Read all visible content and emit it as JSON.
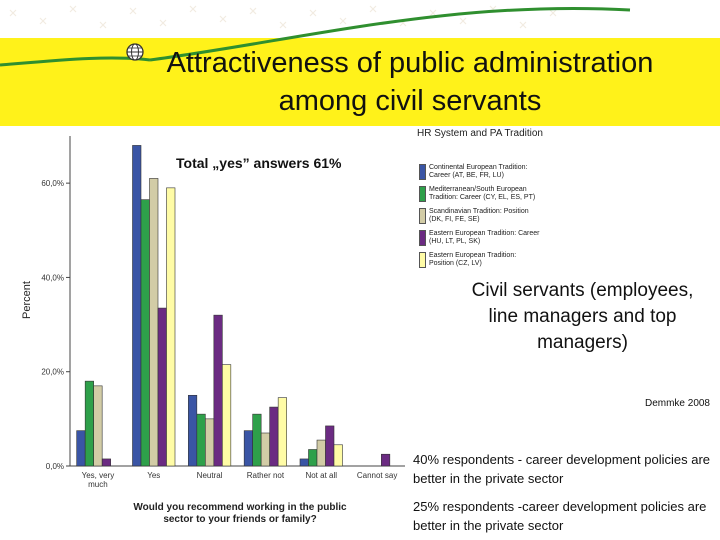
{
  "title": {
    "line1": "Attractiveness of public administration",
    "line2": "among civil servants"
  },
  "annotations": {
    "total_yes": "Total „yes” answers 61%",
    "civil_servants": "Civil servants (employees, line managers and top managers)",
    "source": "Demmke 2008",
    "note1": "40% respondents - career development policies are better in the private sector",
    "note2": "25% respondents -career development policies are better in the private sector"
  },
  "chart_data": {
    "type": "bar",
    "ylabel": "Percent",
    "xlabel": "Would you recommend working in the public sector to your friends or family?",
    "ylim": [
      0,
      70
    ],
    "yticks": [
      "0,0%",
      "20,0%",
      "40,0%",
      "60,0%"
    ],
    "categories": [
      "Yes, very much",
      "Yes",
      "Neutral",
      "Rather not",
      "Not at all",
      "Cannot say"
    ],
    "legend_title": "HR System and PA Tradition",
    "legend_placement": "right",
    "grid": false,
    "series": [
      {
        "name": "Continental European Tradition: Career (AT, BE, FR, LU)",
        "color": "#3a55a5",
        "values": [
          7.5,
          68,
          15,
          7.5,
          1.5,
          0
        ]
      },
      {
        "name": "Mediterranean/South European Tradition: Career (CY, EL, ES, PT)",
        "color": "#2ea04a",
        "values": [
          18,
          56.5,
          11,
          11,
          3.5,
          0
        ]
      },
      {
        "name": "Scandinavian Tradition: Position (DK, FI, FE, SE)",
        "color": "#d2cca6",
        "values": [
          17,
          61,
          10,
          7,
          5.5,
          0
        ]
      },
      {
        "name": "Eastern European Tradition: Career (HU, LT, PL, SK)",
        "color": "#6b2b82",
        "values": [
          1.5,
          33.5,
          32,
          12.5,
          8.5,
          2.5
        ]
      },
      {
        "name": "Eastern European Tradition: Position (CZ, LV)",
        "color": "#fffca6",
        "values": [
          0,
          59,
          21.5,
          14.5,
          4.5,
          0
        ]
      }
    ]
  }
}
